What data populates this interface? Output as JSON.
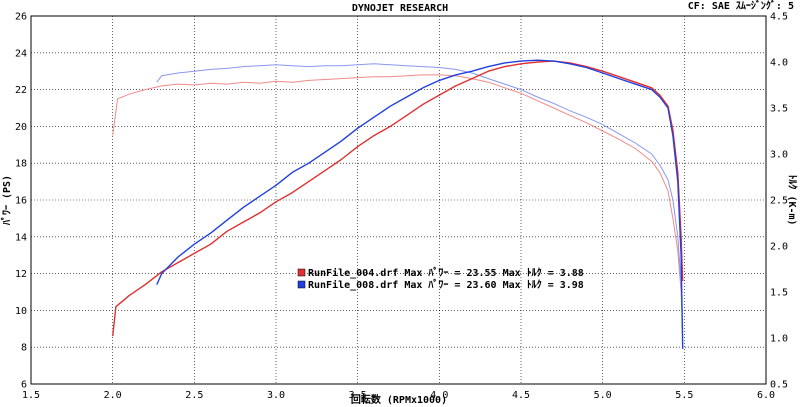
{
  "header": {
    "title": "DYNOJET  RESEARCH",
    "info": "CF: SAE  ｽﾑｰｼﾞﾝｸﾞ: 5"
  },
  "chart_data": {
    "type": "line",
    "title": "DYNOJET  RESEARCH",
    "xlabel": "回転数 (RPMx1000)",
    "ylabel_left": "ﾊﾟﾜｰ (PS)",
    "ylabel_right": "ﾄﾙｸ (K-m)",
    "xlim": [
      1.5,
      6.0
    ],
    "ylim_left": [
      6,
      26
    ],
    "ylim_right": [
      0.5,
      4.5
    ],
    "x_ticks": [
      "1.5",
      "2.0",
      "2.5",
      "3.0",
      "3.5",
      "4.0",
      "4.5",
      "5.0",
      "5.5",
      "6.0"
    ],
    "y_left_ticks": [
      "6",
      "8",
      "10",
      "12",
      "14",
      "16",
      "18",
      "20",
      "22",
      "24",
      "26"
    ],
    "y_right_ticks": [
      "0.5",
      "1.0",
      "1.5",
      "2.0",
      "2.5",
      "3.0",
      "3.5",
      "4.0",
      "4.5"
    ],
    "grid": true,
    "legend_position": "center",
    "legend": [
      {
        "text": "RunFile_004.drf Max ﾊﾟﾜｰ = 23.55     Max ﾄﾙｸ = 3.88",
        "color": "#e03030"
      },
      {
        "text": "RunFile_008.drf Max ﾊﾟﾜｰ = 23.60     Max ﾄﾙｸ = 3.98",
        "color": "#2040e0"
      }
    ],
    "series": [
      {
        "color": "#e03030",
        "kind": "power",
        "axis": "left",
        "x": [
          2.0,
          2.02,
          2.1,
          2.2,
          2.3,
          2.4,
          2.5,
          2.6,
          2.7,
          2.8,
          2.9,
          3.0,
          3.1,
          3.2,
          3.3,
          3.4,
          3.5,
          3.6,
          3.7,
          3.8,
          3.9,
          4.0,
          4.1,
          4.2,
          4.3,
          4.4,
          4.5,
          4.6,
          4.7,
          4.8,
          4.9,
          5.0,
          5.1,
          5.2,
          5.3,
          5.35,
          5.4,
          5.43,
          5.46,
          5.48,
          5.49
        ],
        "y": [
          8.6,
          10.2,
          10.8,
          11.4,
          12.1,
          12.6,
          13.1,
          13.6,
          14.3,
          14.8,
          15.3,
          15.9,
          16.4,
          17.0,
          17.6,
          18.2,
          18.9,
          19.5,
          20.0,
          20.6,
          21.2,
          21.7,
          22.2,
          22.6,
          23.0,
          23.25,
          23.4,
          23.5,
          23.55,
          23.45,
          23.25,
          23.0,
          22.7,
          22.4,
          22.1,
          21.7,
          21.1,
          19.8,
          17.5,
          14.0,
          11.6
        ]
      },
      {
        "color": "#2040e0",
        "kind": "power",
        "axis": "left",
        "x": [
          2.27,
          2.3,
          2.4,
          2.5,
          2.6,
          2.7,
          2.8,
          2.9,
          3.0,
          3.1,
          3.2,
          3.3,
          3.4,
          3.5,
          3.6,
          3.7,
          3.8,
          3.9,
          4.0,
          4.1,
          4.2,
          4.3,
          4.4,
          4.5,
          4.6,
          4.7,
          4.8,
          4.9,
          5.0,
          5.1,
          5.2,
          5.3,
          5.35,
          5.4,
          5.43,
          5.46,
          5.48,
          5.49
        ],
        "y": [
          11.4,
          12.0,
          12.9,
          13.6,
          14.2,
          14.9,
          15.6,
          16.2,
          16.8,
          17.5,
          18.0,
          18.6,
          19.2,
          19.9,
          20.5,
          21.1,
          21.6,
          22.1,
          22.5,
          22.8,
          23.0,
          23.25,
          23.45,
          23.55,
          23.6,
          23.55,
          23.4,
          23.2,
          22.9,
          22.6,
          22.3,
          22.0,
          21.6,
          21.0,
          19.5,
          17.0,
          13.0,
          7.9
        ]
      },
      {
        "color": "#f08a8a",
        "kind": "torque",
        "axis": "right",
        "x": [
          2.0,
          2.03,
          2.1,
          2.2,
          2.3,
          2.4,
          2.5,
          2.6,
          2.7,
          2.8,
          2.9,
          3.0,
          3.1,
          3.2,
          3.3,
          3.4,
          3.5,
          3.6,
          3.7,
          3.8,
          3.9,
          4.0,
          4.1,
          4.2,
          4.3,
          4.4,
          4.5,
          4.6,
          4.7,
          4.8,
          4.9,
          5.0,
          5.1,
          5.2,
          5.3,
          5.35,
          5.4,
          5.43,
          5.46,
          5.48,
          5.49
        ],
        "y": [
          3.2,
          3.6,
          3.65,
          3.7,
          3.74,
          3.76,
          3.75,
          3.77,
          3.76,
          3.78,
          3.77,
          3.79,
          3.78,
          3.8,
          3.81,
          3.82,
          3.83,
          3.84,
          3.84,
          3.85,
          3.86,
          3.86,
          3.85,
          3.82,
          3.78,
          3.72,
          3.66,
          3.58,
          3.5,
          3.42,
          3.34,
          3.25,
          3.16,
          3.06,
          2.92,
          2.8,
          2.6,
          2.3,
          1.95,
          1.5,
          1.1
        ]
      },
      {
        "color": "#8a98f0",
        "kind": "torque",
        "axis": "right",
        "x": [
          2.27,
          2.3,
          2.4,
          2.5,
          2.6,
          2.7,
          2.8,
          2.9,
          3.0,
          3.1,
          3.2,
          3.3,
          3.4,
          3.5,
          3.6,
          3.7,
          3.8,
          3.9,
          4.0,
          4.1,
          4.2,
          4.3,
          4.4,
          4.5,
          4.6,
          4.7,
          4.8,
          4.9,
          5.0,
          5.1,
          5.2,
          5.3,
          5.35,
          5.4,
          5.43,
          5.46,
          5.48,
          5.49
        ],
        "y": [
          3.78,
          3.85,
          3.88,
          3.9,
          3.92,
          3.93,
          3.95,
          3.96,
          3.97,
          3.96,
          3.95,
          3.96,
          3.96,
          3.97,
          3.98,
          3.97,
          3.96,
          3.95,
          3.94,
          3.92,
          3.88,
          3.82,
          3.76,
          3.7,
          3.62,
          3.55,
          3.47,
          3.4,
          3.32,
          3.22,
          3.12,
          3.0,
          2.88,
          2.72,
          2.5,
          2.1,
          1.6,
          1.0
        ]
      }
    ]
  }
}
